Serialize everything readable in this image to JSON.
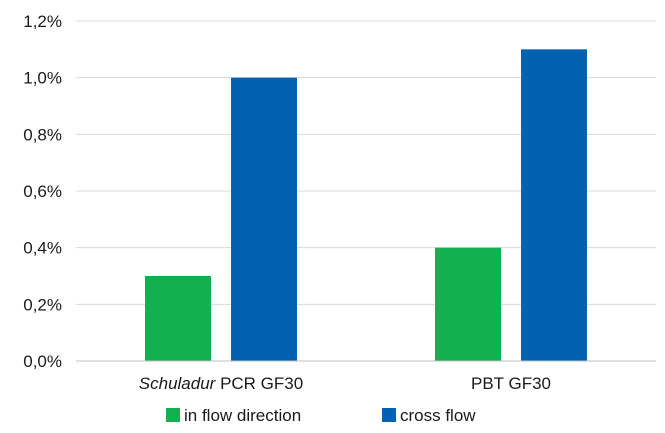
{
  "chart_data": {
    "type": "bar",
    "categories": [
      {
        "italic": "Schuladur",
        "rest": " PCR GF30"
      },
      {
        "italic": "",
        "rest": "PBT GF30"
      }
    ],
    "series": [
      {
        "name": "in flow direction",
        "values": [
          0.3,
          0.4
        ],
        "color": "#12b04f"
      },
      {
        "name": "cross flow",
        "values": [
          1.0,
          1.1
        ],
        "color": "#0062b1"
      }
    ],
    "y_ticks": [
      "0,0%",
      "0,2%",
      "0,4%",
      "0,6%",
      "0,8%",
      "1,0%",
      "1,2%"
    ],
    "ylim": [
      0,
      1.2
    ],
    "grid": true,
    "legend": "bottom-center"
  }
}
